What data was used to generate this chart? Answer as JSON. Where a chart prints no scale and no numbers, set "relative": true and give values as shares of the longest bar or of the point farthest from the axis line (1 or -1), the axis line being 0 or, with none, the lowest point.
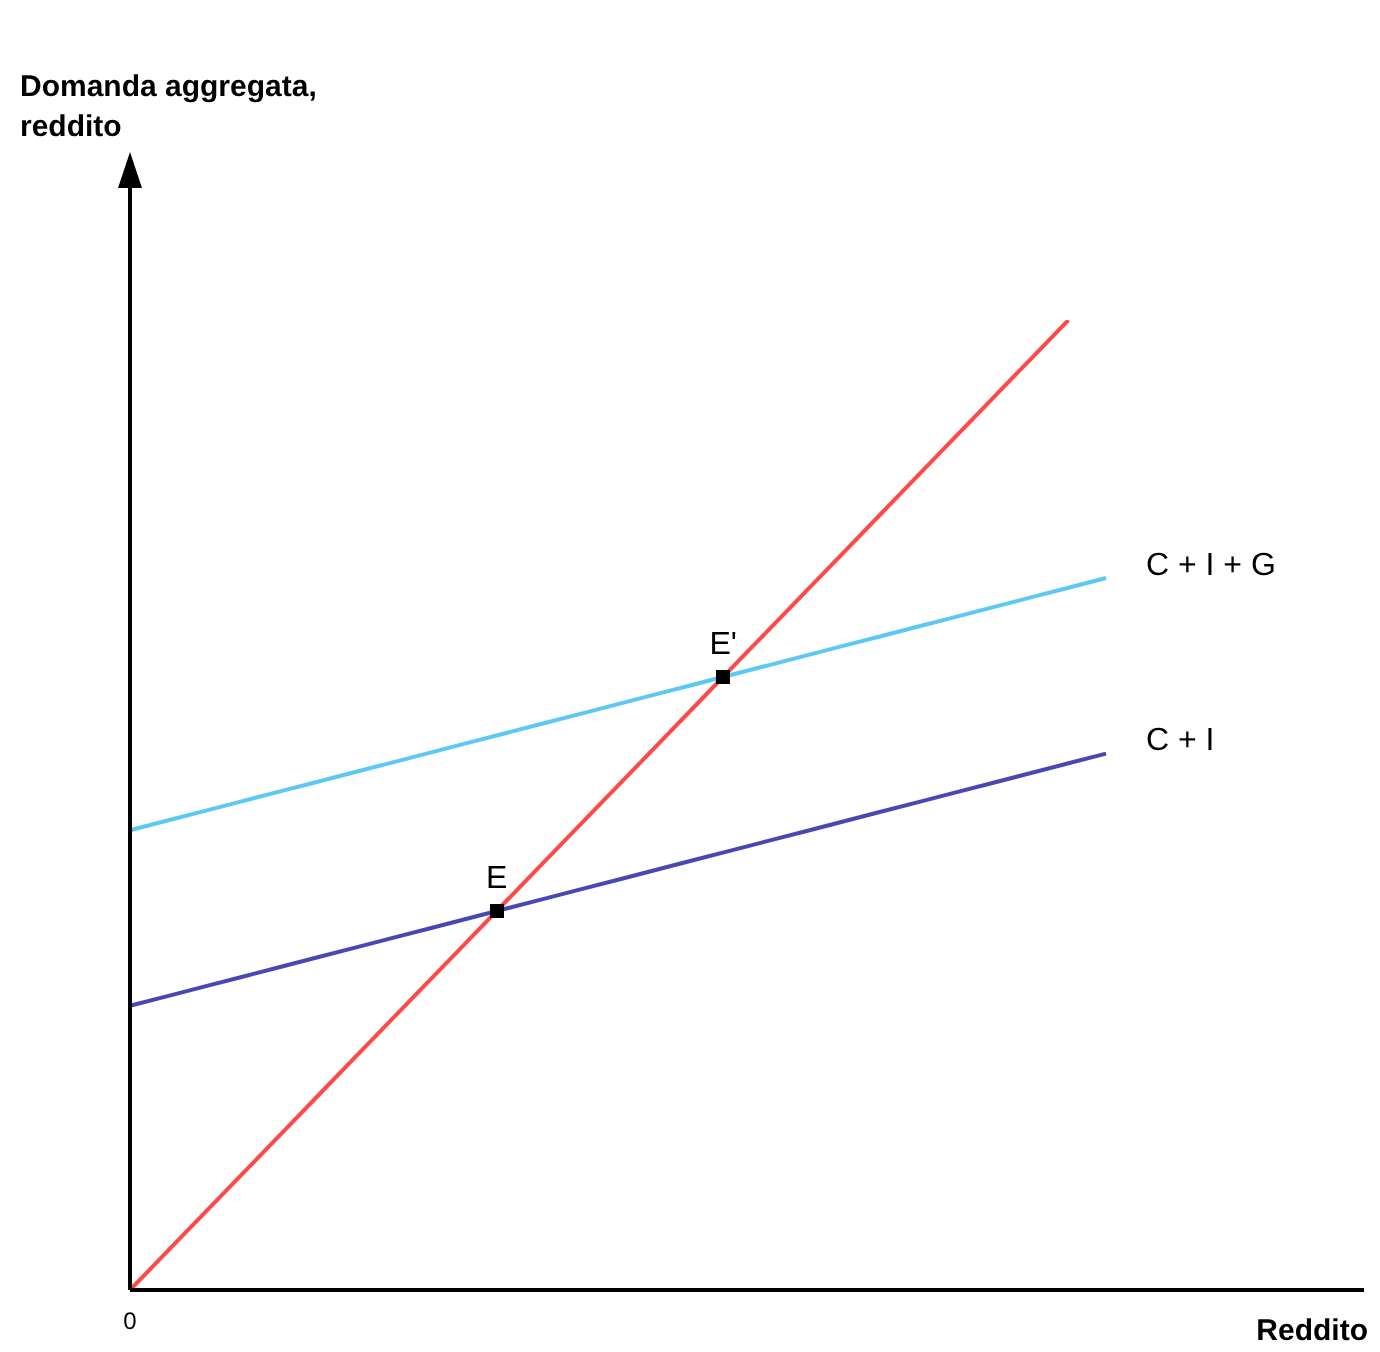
{
  "chart_data": {
    "type": "line",
    "relative": true,
    "xlabel": "Reddito",
    "line_style": "solid",
    "categories": [
      null,
      null,
      null,
      null,
      null,
      null,
      null,
      null,
      null,
      null,
      null,
      null,
      null,
      null,
      null,
      null,
      null,
      null,
      null,
      null,
      null,
      null,
      null,
      null,
      null,
      null,
      null
    ],
    "series": [
      {
        "color": "#ff4848",
        "values": [
          0,
          0.04,
          0.08,
          0.12,
          0.16,
          0.2,
          0.24,
          0.28,
          0.32,
          0.36,
          0.4,
          0.44,
          0.48,
          0.52,
          0.56,
          0.6,
          0.64,
          0.68,
          0.72,
          0.76,
          0.8,
          0.84,
          0.88,
          0.92,
          0.96,
          1,
          null
        ]
      },
      {
        "name": "C + I + G",
        "color": "#5cc8f5",
        "values": [
          0.474,
          0.484,
          0.494,
          0.504,
          0.514,
          0.524,
          0.534,
          0.544,
          0.554,
          0.564,
          0.574,
          0.584,
          0.594,
          0.604,
          0.614,
          0.624,
          0.634,
          0.644,
          0.654,
          0.664,
          0.674,
          0.684,
          0.694,
          0.704,
          0.714,
          0.724,
          0.734
        ]
      },
      {
        "name": "C + I",
        "color": "#4848b4",
        "values": [
          0.293,
          0.303,
          0.313,
          0.323,
          0.333,
          0.343,
          0.353,
          0.363,
          0.373,
          0.383,
          0.393,
          0.403,
          0.413,
          0.423,
          0.433,
          0.443,
          0.453,
          0.463,
          0.473,
          0.483,
          0.493,
          0.503,
          0.513,
          0.523,
          0.533,
          0.543,
          0.553
        ]
      }
    ],
    "annotations": [
      "Domanda aggregata, reddito",
      "E",
      "E'",
      "0"
    ]
  }
}
